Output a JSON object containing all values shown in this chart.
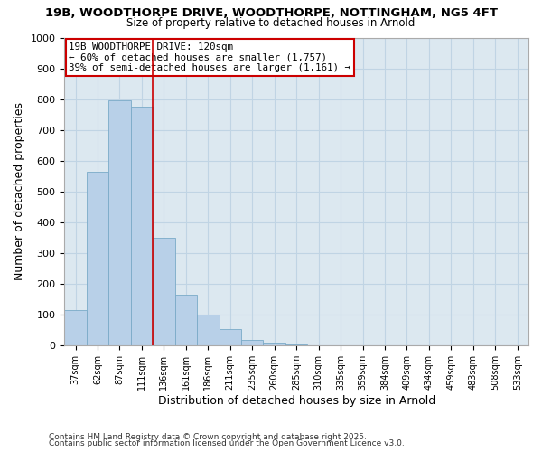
{
  "title1": "19B, WOODTHORPE DRIVE, WOODTHORPE, NOTTINGHAM, NG5 4FT",
  "title2": "Size of property relative to detached houses in Arnold",
  "xlabel": "Distribution of detached houses by size in Arnold",
  "ylabel": "Number of detached properties",
  "bar_labels": [
    "37sqm",
    "62sqm",
    "87sqm",
    "111sqm",
    "136sqm",
    "161sqm",
    "186sqm",
    "211sqm",
    "235sqm",
    "260sqm",
    "285sqm",
    "310sqm",
    "335sqm",
    "359sqm",
    "384sqm",
    "409sqm",
    "434sqm",
    "459sqm",
    "483sqm",
    "508sqm",
    "533sqm"
  ],
  "bar_values": [
    115,
    565,
    795,
    775,
    350,
    165,
    100,
    55,
    20,
    10,
    5,
    1,
    1,
    0,
    0,
    0,
    0,
    0,
    0,
    0,
    0
  ],
  "bar_color": "#b8d0e8",
  "bar_edge_color": "#7aaac8",
  "vline_x": 3.5,
  "vline_color": "#cc0000",
  "annotation_text": "19B WOODTHORPE DRIVE: 120sqm\n← 60% of detached houses are smaller (1,757)\n39% of semi-detached houses are larger (1,161) →",
  "annotation_box_color": "#ffffff",
  "annotation_box_edge": "#cc0000",
  "ylim": [
    0,
    1000
  ],
  "yticks": [
    0,
    100,
    200,
    300,
    400,
    500,
    600,
    700,
    800,
    900,
    1000
  ],
  "plot_bg_color": "#dce8f0",
  "fig_bg_color": "#ffffff",
  "grid_color": "#c0d4e4",
  "footer1": "Contains HM Land Registry data © Crown copyright and database right 2025.",
  "footer2": "Contains public sector information licensed under the Open Government Licence v3.0."
}
